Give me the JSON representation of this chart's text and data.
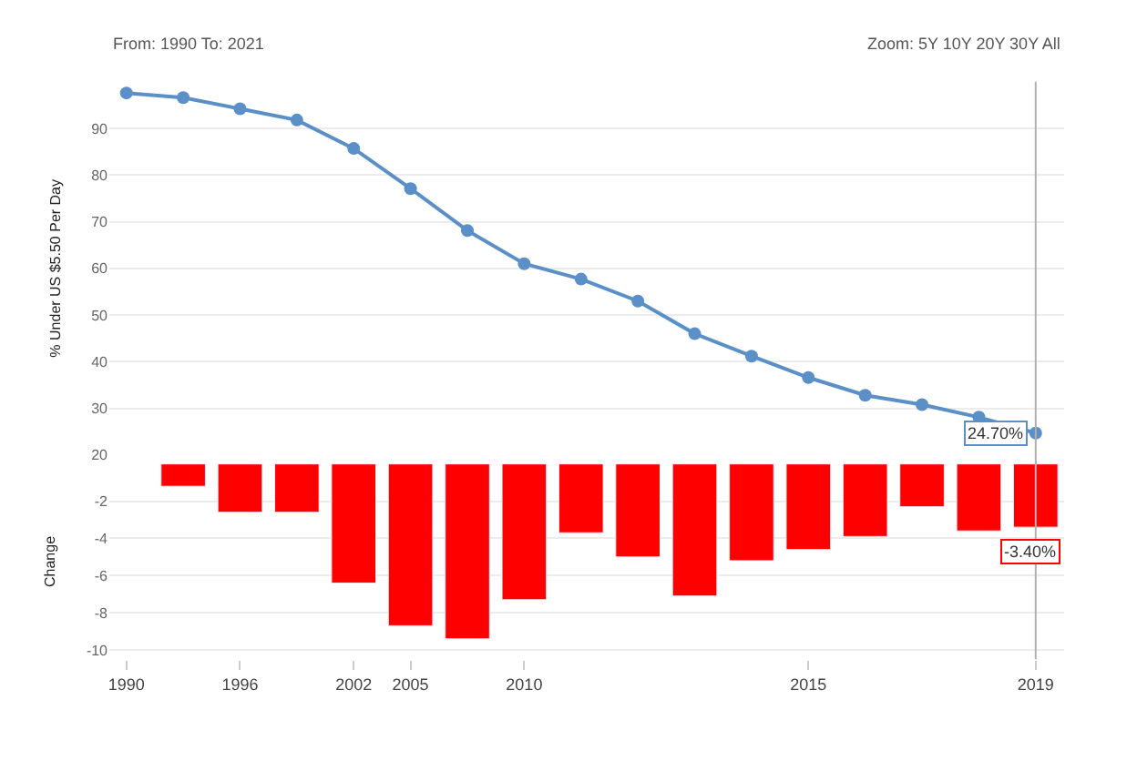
{
  "chart_data": [
    {
      "type": "line",
      "ylabel": "% Under US $5.50 Per Day",
      "categories": [
        "1990",
        null,
        "1996",
        null,
        "2002",
        "2005",
        null,
        "2010",
        null,
        null,
        null,
        null,
        "2015",
        null,
        null,
        null,
        "2019"
      ],
      "series": [
        {
          "color": "#5b8fc7",
          "values": [
            97.6,
            96.6,
            94.2,
            91.8,
            85.7,
            77.1,
            68.1,
            61.0,
            57.7,
            53.0,
            46.0,
            41.2,
            36.6,
            32.8,
            30.8,
            28.1,
            24.7
          ]
        }
      ],
      "ylim": [
        20,
        100
      ],
      "yticks": [
        20,
        30,
        40,
        50,
        60,
        70,
        80,
        90
      ],
      "grid": "y",
      "marker": "circle",
      "line_style": "solid",
      "tick_labels": "y",
      "ref_lines": [
        {
          "axis": "x",
          "value": "2019",
          "color": "#b0b0b0"
        }
      ],
      "annotations": [
        "From: 1990 To: 2021",
        "Zoom: 5Y 10Y 20Y 30Y All",
        {
          "text": "24.70%",
          "x": "2019",
          "y": 24.7
        }
      ]
    },
    {
      "type": "bar",
      "ylabel": "Change",
      "categories": [
        "1990",
        null,
        "1996",
        null,
        "2002",
        "2005",
        null,
        "2010",
        null,
        null,
        null,
        null,
        "2015",
        null,
        null,
        null,
        "2019"
      ],
      "series": [
        {
          "color": "#ff0000",
          "values": [
            null,
            -1.2,
            -2.6,
            -2.6,
            -6.4,
            -8.7,
            -9.4,
            -7.3,
            -3.7,
            -5.0,
            -7.1,
            -5.2,
            -4.6,
            -3.9,
            -2.3,
            -3.6,
            -3.4
          ]
        }
      ],
      "ylim": [
        -10.5,
        0
      ],
      "yticks": [
        -10,
        -8,
        -6,
        -4,
        -2
      ],
      "grid": "y",
      "annotations": [
        {
          "text": "-3.40%",
          "x": "2019",
          "y": -3.4
        }
      ]
    }
  ]
}
